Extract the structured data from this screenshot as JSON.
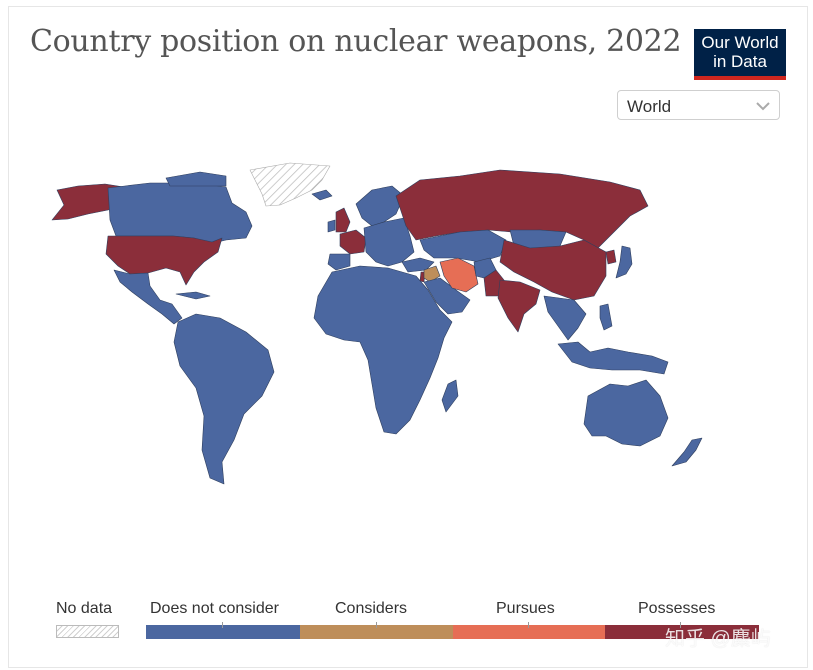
{
  "title": "Country position on nuclear weapons, 2022",
  "logo": {
    "line1": "Our World",
    "line2": "in Data"
  },
  "region_selector": {
    "value": "World"
  },
  "legend": {
    "no_data": "No data",
    "categories": [
      {
        "label": "Does not consider",
        "color": "#4b67a0"
      },
      {
        "label": "Considers",
        "color": "#be8e5a"
      },
      {
        "label": "Pursues",
        "color": "#e66e55"
      },
      {
        "label": "Possesses",
        "color": "#8b2e3a"
      }
    ]
  },
  "watermark": "知乎 @麋屿",
  "colors": {
    "does_not_consider": "#4b67a0",
    "considers": "#be8e5a",
    "pursues": "#e66e55",
    "possesses": "#8b2e3a",
    "no_data": "#d0d0d0",
    "border": "#2f3f5e"
  }
}
